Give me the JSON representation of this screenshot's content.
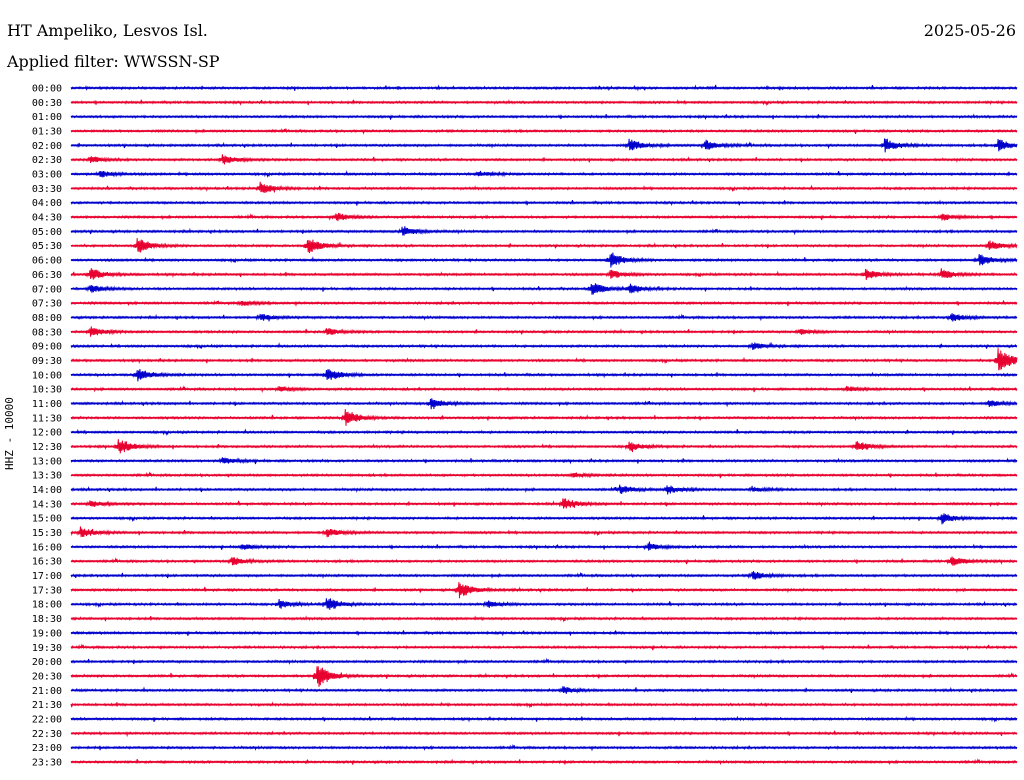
{
  "header": {
    "station": "HT Ampeliko, Lesvos Isl.",
    "date": "2025-05-26",
    "filter": "Applied filter: WWSSN-SP"
  },
  "chart_data": {
    "type": "line",
    "title": "HT Ampeliko, Lesvos Isl.",
    "subtitle": "Applied filter: WWSSN-SP",
    "ylabel": "HHZ - 10000",
    "colors": [
      "#0000cc",
      "#e8002e"
    ],
    "row_labels": [
      "00:00",
      "00:30",
      "01:00",
      "01:30",
      "02:00",
      "02:30",
      "03:00",
      "03:30",
      "04:00",
      "04:30",
      "05:00",
      "05:30",
      "06:00",
      "06:30",
      "07:00",
      "07:30",
      "08:00",
      "08:30",
      "09:00",
      "09:30",
      "10:00",
      "10:30",
      "11:00",
      "11:30",
      "12:00",
      "12:30",
      "13:00",
      "13:30",
      "14:00",
      "14:30",
      "15:00",
      "15:30",
      "16:00",
      "16:30",
      "17:00",
      "17:30",
      "18:00",
      "18:30",
      "19:00",
      "19:30",
      "20:00",
      "20:30",
      "21:00",
      "21:30",
      "22:00",
      "22:30",
      "23:00",
      "23:30"
    ],
    "events": [
      {
        "row": 4,
        "x": 0.59,
        "amp": 0.7
      },
      {
        "row": 4,
        "x": 0.67,
        "amp": 0.6
      },
      {
        "row": 4,
        "x": 0.86,
        "amp": 0.8
      },
      {
        "row": 4,
        "x": 0.98,
        "amp": 0.7
      },
      {
        "row": 5,
        "x": 0.16,
        "amp": 0.6
      },
      {
        "row": 5,
        "x": 0.02,
        "amp": 0.4
      },
      {
        "row": 6,
        "x": 0.03,
        "amp": 0.4
      },
      {
        "row": 6,
        "x": 0.43,
        "amp": 0.3
      },
      {
        "row": 7,
        "x": 0.2,
        "amp": 0.7
      },
      {
        "row": 9,
        "x": 0.28,
        "amp": 0.5
      },
      {
        "row": 9,
        "x": 0.92,
        "amp": 0.4
      },
      {
        "row": 10,
        "x": 0.35,
        "amp": 0.6
      },
      {
        "row": 11,
        "x": 0.07,
        "amp": 0.9
      },
      {
        "row": 11,
        "x": 0.25,
        "amp": 1.0
      },
      {
        "row": 11,
        "x": 0.97,
        "amp": 0.6
      },
      {
        "row": 12,
        "x": 0.57,
        "amp": 0.9
      },
      {
        "row": 12,
        "x": 0.96,
        "amp": 0.7
      },
      {
        "row": 13,
        "x": 0.02,
        "amp": 0.7
      },
      {
        "row": 13,
        "x": 0.57,
        "amp": 0.5
      },
      {
        "row": 13,
        "x": 0.84,
        "amp": 0.6
      },
      {
        "row": 13,
        "x": 0.92,
        "amp": 0.6
      },
      {
        "row": 14,
        "x": 0.02,
        "amp": 0.5
      },
      {
        "row": 14,
        "x": 0.55,
        "amp": 0.8
      },
      {
        "row": 14,
        "x": 0.59,
        "amp": 0.5
      },
      {
        "row": 15,
        "x": 0.18,
        "amp": 0.3
      },
      {
        "row": 16,
        "x": 0.2,
        "amp": 0.4
      },
      {
        "row": 16,
        "x": 0.93,
        "amp": 0.5
      },
      {
        "row": 17,
        "x": 0.02,
        "amp": 0.6
      },
      {
        "row": 17,
        "x": 0.27,
        "amp": 0.4
      },
      {
        "row": 17,
        "x": 0.77,
        "amp": 0.3
      },
      {
        "row": 18,
        "x": 0.72,
        "amp": 0.4
      },
      {
        "row": 19,
        "x": 0.98,
        "amp": 1.6
      },
      {
        "row": 20,
        "x": 0.07,
        "amp": 0.8
      },
      {
        "row": 20,
        "x": 0.27,
        "amp": 0.8
      },
      {
        "row": 21,
        "x": 0.22,
        "amp": 0.3
      },
      {
        "row": 21,
        "x": 0.82,
        "amp": 0.3
      },
      {
        "row": 22,
        "x": 0.38,
        "amp": 0.7
      },
      {
        "row": 22,
        "x": 0.97,
        "amp": 0.4
      },
      {
        "row": 23,
        "x": 0.29,
        "amp": 1.0
      },
      {
        "row": 25,
        "x": 0.05,
        "amp": 0.9
      },
      {
        "row": 25,
        "x": 0.59,
        "amp": 0.5
      },
      {
        "row": 25,
        "x": 0.83,
        "amp": 0.6
      },
      {
        "row": 26,
        "x": 0.16,
        "amp": 0.4
      },
      {
        "row": 27,
        "x": 0.53,
        "amp": 0.3
      },
      {
        "row": 28,
        "x": 0.58,
        "amp": 0.5
      },
      {
        "row": 28,
        "x": 0.63,
        "amp": 0.5
      },
      {
        "row": 28,
        "x": 0.72,
        "amp": 0.3
      },
      {
        "row": 29,
        "x": 0.52,
        "amp": 0.7
      },
      {
        "row": 29,
        "x": 0.02,
        "amp": 0.4
      },
      {
        "row": 30,
        "x": 0.92,
        "amp": 0.6
      },
      {
        "row": 31,
        "x": 0.01,
        "amp": 0.6
      },
      {
        "row": 31,
        "x": 0.27,
        "amp": 0.5
      },
      {
        "row": 32,
        "x": 0.61,
        "amp": 0.4
      },
      {
        "row": 32,
        "x": 0.18,
        "amp": 0.3
      },
      {
        "row": 33,
        "x": 0.17,
        "amp": 0.5
      },
      {
        "row": 33,
        "x": 0.93,
        "amp": 0.6
      },
      {
        "row": 34,
        "x": 0.72,
        "amp": 0.5
      },
      {
        "row": 35,
        "x": 0.41,
        "amp": 1.0
      },
      {
        "row": 36,
        "x": 0.22,
        "amp": 0.5
      },
      {
        "row": 36,
        "x": 0.27,
        "amp": 0.8
      },
      {
        "row": 36,
        "x": 0.44,
        "amp": 0.4
      },
      {
        "row": 41,
        "x": 0.26,
        "amp": 1.4
      },
      {
        "row": 42,
        "x": 0.52,
        "amp": 0.4
      }
    ]
  }
}
